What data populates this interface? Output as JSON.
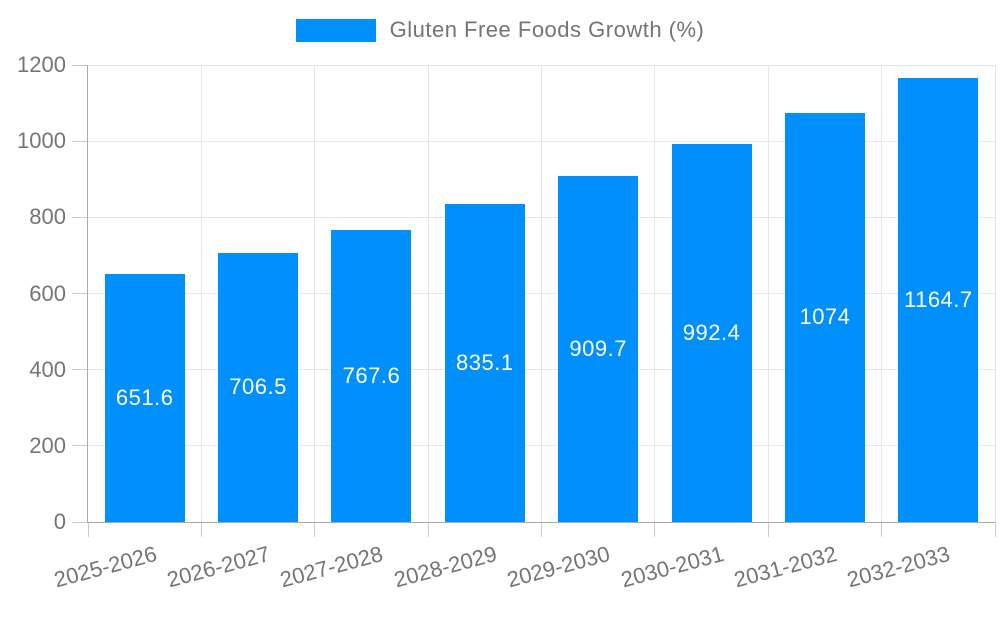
{
  "legend": {
    "label": "Gluten Free Foods Growth (%)"
  },
  "colors": {
    "bar": "#008FFB",
    "bar_label_text": "#FFFFFF",
    "axis_text": "#757575",
    "legend_text": "#747474",
    "gridline": "#e6e6e6",
    "axis_line": "#a9a9a9",
    "tick": "#cccccc",
    "background": "#ffffff"
  },
  "chart_data": {
    "type": "bar",
    "title": "Gluten Free Foods Growth (%)",
    "categories": [
      "2025-2026",
      "2026-2027",
      "2027-2028",
      "2028-2029",
      "2029-2030",
      "2030-2031",
      "2031-2032",
      "2032-2033"
    ],
    "values": [
      651.6,
      706.5,
      767.6,
      835.1,
      909.7,
      992.4,
      1074,
      1164.7
    ],
    "bar_labels": [
      "651.6",
      "706.5",
      "767.6",
      "835.1",
      "909.7",
      "992.4",
      "1074",
      "1164.7"
    ],
    "y_ticks": [
      0,
      200,
      400,
      600,
      800,
      1000,
      1200
    ],
    "ylim": [
      0,
      1200
    ],
    "xlabel": "",
    "ylabel": "",
    "legend_position": "top",
    "legend_entries": [
      "Gluten Free Foods Growth (%)"
    ],
    "grid": true,
    "x_label_rotation_deg": -15,
    "bar_label_position": "middle-inside"
  }
}
